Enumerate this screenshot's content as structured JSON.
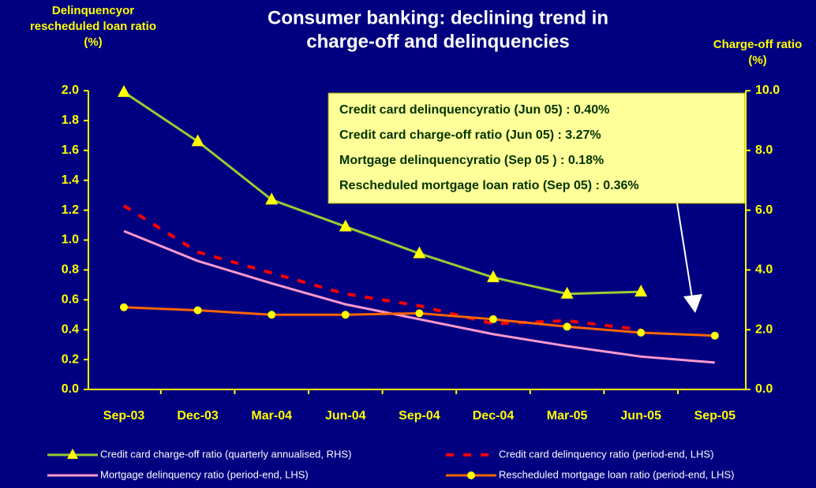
{
  "chart_data": {
    "type": "line",
    "title": [
      "Consumer banking: declining trend in",
      "charge-off and delinquencies"
    ],
    "y_label": [
      "Delinquencyor",
      "rescheduled  loan ratio",
      "(%)"
    ],
    "y2_label": [
      "Charge-off  ratio",
      "(%)"
    ],
    "categories": [
      "Sep-03",
      "Dec-03",
      "Mar-04",
      "Jun-04",
      "Sep-04",
      "Dec-04",
      "Mar-05",
      "Jun-05",
      "Sep-05"
    ],
    "ylim": [
      0,
      2
    ],
    "yticks": [
      {
        "value": 0,
        "label": "0.0"
      },
      0.2,
      0.4,
      0.6,
      0.8,
      {
        "value": 1,
        "label": "1.0"
      },
      1.2,
      1.4,
      1.6,
      1.8,
      {
        "value": 2,
        "label": "2.0"
      }
    ],
    "y2lim": [
      0,
      10
    ],
    "y2ticks": [
      {
        "value": 0,
        "label": "0.0"
      },
      {
        "value": 2,
        "label": "2.0"
      },
      {
        "value": 4,
        "label": "4.0"
      },
      {
        "value": 6,
        "label": "6.0"
      },
      {
        "value": 8,
        "label": "8.0"
      },
      {
        "value": 10,
        "label": "10.0"
      }
    ],
    "series": [
      {
        "name": "Credit card charge-off ratio (quarterly annualised, RHS)",
        "color": "#99cc33",
        "axis": "y2",
        "marker": "triangle",
        "values": [
          9.95,
          8.3,
          6.35,
          5.45,
          4.55,
          3.75,
          3.2,
          3.27,
          null
        ]
      },
      {
        "name": "Credit card delinquency ratio (period-end, LHS)",
        "color": "#ff0000",
        "dashed": true,
        "values": [
          1.23,
          0.92,
          0.78,
          0.64,
          0.56,
          0.44,
          0.46,
          0.4,
          null
        ]
      },
      {
        "name": "Mortgage delinquency ratio (period-end, LHS)",
        "color": "#ff99cc",
        "values": [
          1.06,
          0.86,
          0.71,
          0.57,
          0.47,
          0.37,
          0.29,
          0.22,
          0.18
        ]
      },
      {
        "name": "Rescheduled mortgage loan ratio (period-end, LHS)",
        "color": "#ff6600",
        "marker": "circle",
        "values": [
          0.55,
          0.53,
          0.5,
          0.5,
          0.51,
          0.47,
          0.42,
          0.38,
          0.36
        ]
      }
    ],
    "annotations": [
      "Credit card delinquencyratio (Jun 05) : 0.40%",
      "Credit card charge-off ratio (Jun 05) : 3.27%",
      "Mortgage delinquencyratio (Sep 05 ) : 0.18%",
      "Rescheduled mortgage loan ratio (Sep 05) : 0.36%"
    ]
  }
}
